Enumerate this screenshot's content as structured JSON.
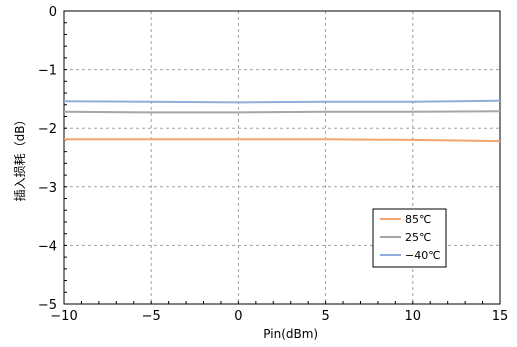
{
  "chart_data": {
    "type": "line",
    "title": "",
    "xlabel": "Pin(dBm)",
    "ylabel": "插入损耗（dB）",
    "xlim": [
      -10,
      15
    ],
    "ylim": [
      -5,
      0
    ],
    "xticks": [
      -10,
      -5,
      0,
      5,
      10,
      15
    ],
    "yticks": [
      0,
      -1,
      -2,
      -3,
      -4,
      -5
    ],
    "x_tick_labels": [
      "−10",
      "−5",
      "0",
      "5",
      "10",
      "15"
    ],
    "y_tick_labels": [
      "0",
      "−1",
      "−2",
      "−3",
      "−4",
      "−5"
    ],
    "grid": true,
    "legend_position": "lower-right",
    "series": [
      {
        "name": "85℃",
        "color": "#f4a56f",
        "x": [
          -10,
          -5,
          0,
          5,
          10,
          15
        ],
        "y": [
          -2.19,
          -2.19,
          -2.19,
          -2.19,
          -2.2,
          -2.22
        ]
      },
      {
        "name": "25℃",
        "color": "#a6a6a6",
        "x": [
          -10,
          -5,
          0,
          5,
          10,
          15
        ],
        "y": [
          -1.72,
          -1.73,
          -1.73,
          -1.72,
          -1.72,
          -1.71
        ]
      },
      {
        "name": "−40℃",
        "color": "#8fadd9",
        "x": [
          -10,
          -5,
          0,
          5,
          10,
          15
        ],
        "y": [
          -1.54,
          -1.55,
          -1.56,
          -1.55,
          -1.55,
          -1.53
        ]
      }
    ]
  }
}
